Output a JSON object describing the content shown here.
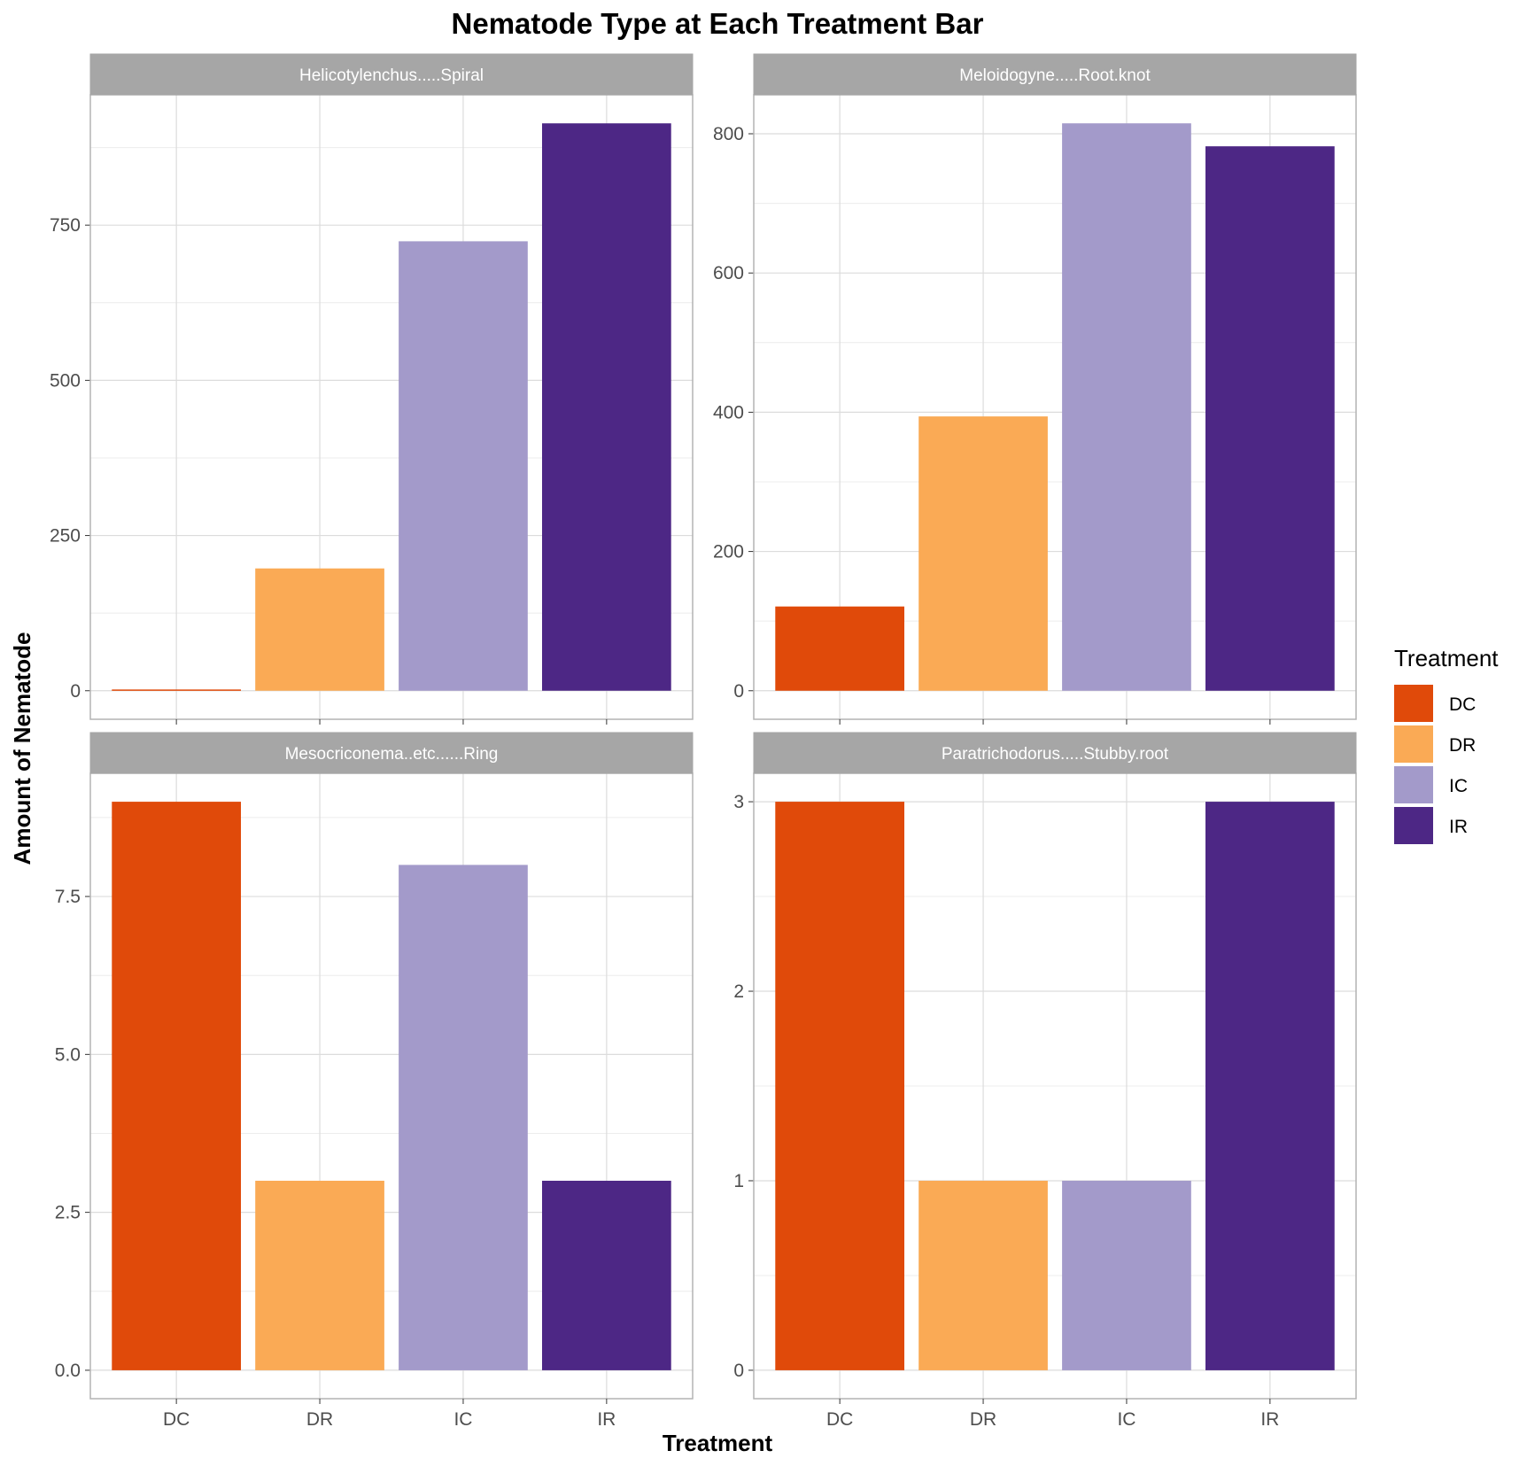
{
  "chart_data": {
    "type": "bar",
    "title": "Nematode Type at Each Treatment Bar",
    "xlabel": "Treatment",
    "ylabel": "Amount of Nematode",
    "categories": [
      "DC",
      "DR",
      "IC",
      "IR"
    ],
    "colors": {
      "DC": "#E04A0A",
      "DR": "#FAAA55",
      "IC": "#A39ACA",
      "IR": "#4D2785"
    },
    "legend": {
      "title": "Treatment",
      "placement": "right",
      "entries": [
        "DC",
        "DR",
        "IC",
        "IR"
      ]
    },
    "grid": true,
    "facets": [
      {
        "name": "Helicotylenchus.....Spiral",
        "values": [
          2,
          197,
          724,
          914
        ],
        "ylim": [
          -46,
          960
        ],
        "yticks": [
          0,
          250,
          500,
          750
        ],
        "ytick_labels": [
          "0",
          "250",
          "500",
          "750"
        ]
      },
      {
        "name": "Meloidogyne.....Root.knot",
        "values": [
          121,
          394,
          815,
          782
        ],
        "ylim": [
          -41,
          856
        ],
        "yticks": [
          0,
          200,
          400,
          600,
          800
        ],
        "ytick_labels": [
          "0",
          "200",
          "400",
          "600",
          "800"
        ]
      },
      {
        "name": "Mesocriconema..etc......Ring",
        "values": [
          9,
          3,
          8,
          3
        ],
        "ylim": [
          -0.45,
          9.45
        ],
        "yticks": [
          0,
          2.5,
          5,
          7.5
        ],
        "ytick_labels": [
          "0.0",
          "2.5",
          "5.0",
          "7.5"
        ]
      },
      {
        "name": "Paratrichodorus.....Stubby.root",
        "values": [
          3,
          1,
          1,
          3
        ],
        "ylim": [
          -0.15,
          3.15
        ],
        "yticks": [
          0,
          1,
          2,
          3
        ],
        "ytick_labels": [
          "0",
          "1",
          "2",
          "3"
        ]
      }
    ]
  }
}
